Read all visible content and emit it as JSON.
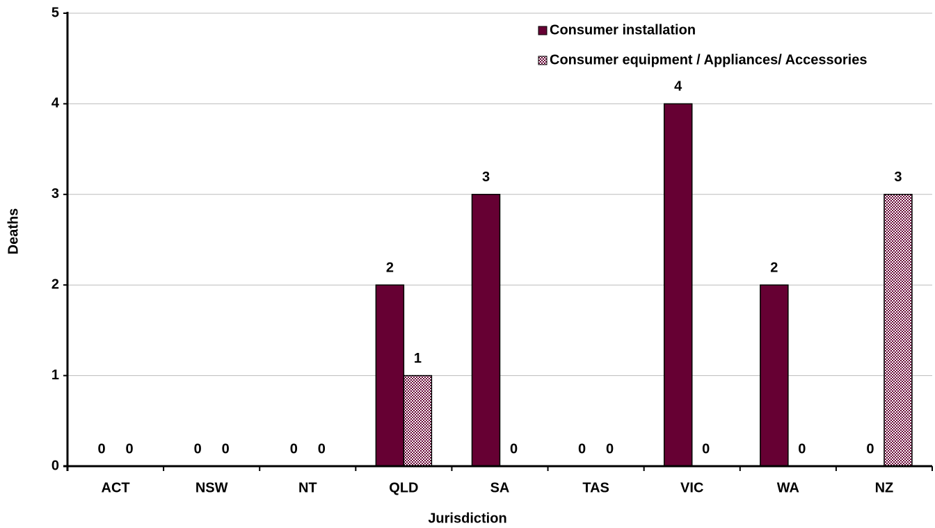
{
  "chart_data": {
    "type": "bar",
    "x_label": "Jurisdiction",
    "y_label": "Deaths",
    "categories": [
      "ACT",
      "NSW",
      "NT",
      "QLD",
      "SA",
      "TAS",
      "VIC",
      "WA",
      "NZ"
    ],
    "series": [
      {
        "name": "Consumer installation",
        "color": "#660033",
        "pattern": "solid",
        "values": [
          0,
          0,
          0,
          2,
          3,
          0,
          4,
          2,
          0
        ]
      },
      {
        "name": "Consumer equipment / Appliances/ Accessories",
        "color": "#660033",
        "pattern": "checker",
        "values": [
          0,
          0,
          0,
          1,
          0,
          0,
          0,
          0,
          3
        ]
      }
    ],
    "ylim": [
      0,
      5
    ],
    "yticks": [
      0,
      1,
      2,
      3,
      4,
      5
    ],
    "grid": true,
    "legend": "top-right"
  }
}
